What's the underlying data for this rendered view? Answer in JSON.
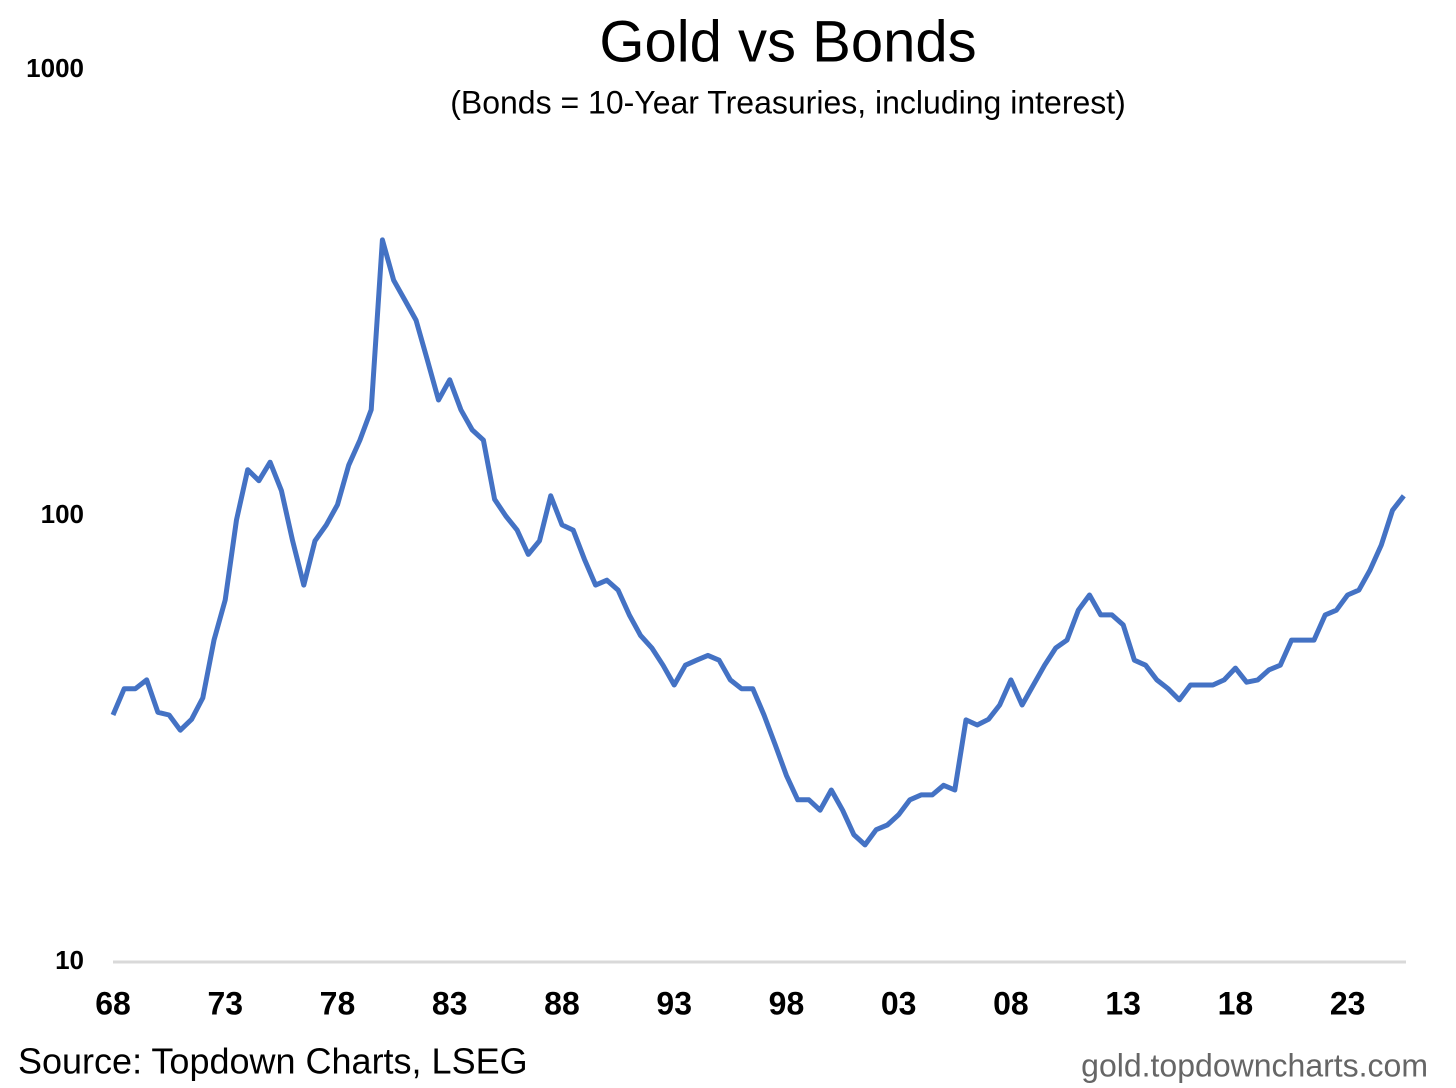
{
  "chart_data": {
    "type": "line",
    "title": "Gold vs Bonds",
    "subtitle": "(Bonds = 10-Year Treasuries, including interest)",
    "source": "Source: Topdown Charts, LSEG",
    "watermark": "gold.topdowncharts.com",
    "log_y": true,
    "x": [
      1968,
      1968.5,
      1969,
      1969.5,
      1970,
      1970.5,
      1971,
      1971.5,
      1972,
      1972.5,
      1973,
      1973.5,
      1974,
      1974.5,
      1975,
      1975.5,
      1976,
      1976.5,
      1977,
      1977.5,
      1978,
      1978.5,
      1979,
      1979.5,
      1980,
      1980.5,
      1981,
      1981.5,
      1982,
      1982.5,
      1983,
      1983.5,
      1984,
      1984.5,
      1985,
      1985.5,
      1986,
      1986.5,
      1987,
      1987.5,
      1988,
      1988.5,
      1989,
      1989.5,
      1990,
      1990.5,
      1991,
      1991.5,
      1992,
      1992.5,
      1993,
      1993.5,
      1994,
      1994.5,
      1995,
      1995.5,
      1996,
      1996.5,
      1997,
      1997.5,
      1998,
      1998.5,
      1999,
      1999.5,
      2000,
      2000.5,
      2001,
      2001.5,
      2002,
      2002.5,
      2003,
      2003.5,
      2004,
      2004.5,
      2005,
      2005.5,
      2006,
      2006.5,
      2007,
      2007.5,
      2008,
      2008.5,
      2009,
      2009.5,
      2010,
      2010.5,
      2011,
      2011.5,
      2012,
      2012.5,
      2013,
      2013.5,
      2014,
      2014.5,
      2015,
      2015.5,
      2016,
      2016.5,
      2017,
      2017.5,
      2018,
      2018.5,
      2019,
      2019.5,
      2020,
      2020.5,
      2021,
      2021.5,
      2022,
      2022.5,
      2023,
      2023.5,
      2024,
      2024.5,
      2025,
      2025.5
    ],
    "series": [
      {
        "name": "Gold vs Bonds",
        "color": "#4472c4",
        "values": [
          35.8,
          41,
          41,
          42.9,
          36.3,
          35.8,
          33.1,
          35,
          39.1,
          52.7,
          64.8,
          98,
          127,
          120,
          132,
          114,
          88,
          70,
          88,
          95.5,
          106,
          130,
          148,
          173,
          416,
          338,
          305,
          275,
          224,
          182,
          202,
          173,
          156,
          148,
          109,
          100,
          93,
          82,
          88,
          111,
          95.5,
          93,
          80,
          70,
          71.8,
          68.2,
          60,
          54,
          50.6,
          46.3,
          41.8,
          46.3,
          47.5,
          48.7,
          47.5,
          42.9,
          41,
          41,
          35.8,
          30.7,
          26.2,
          23.1,
          23.1,
          21.9,
          24.3,
          21.9,
          19.3,
          18.3,
          19.8,
          20.3,
          21.4,
          23.1,
          23.7,
          23.7,
          24.9,
          24.3,
          34.9,
          34,
          35,
          37.7,
          42.9,
          37.7,
          41.8,
          46.3,
          50.6,
          52.7,
          61.5,
          66.5,
          60,
          60,
          57,
          47.5,
          46.3,
          42.9,
          41,
          38.7,
          41.8,
          41.8,
          41.8,
          42.9,
          45.6,
          42.4,
          42.9,
          45.2,
          46.3,
          52.7,
          52.7,
          52.7,
          60,
          61.5,
          66.5,
          68.2,
          75.7,
          86.1,
          103,
          111
        ]
      }
    ],
    "xlim": [
      1968,
      2025.6
    ],
    "xticks": [
      {
        "value": 1968,
        "label": "68"
      },
      {
        "value": 1973,
        "label": "73"
      },
      {
        "value": 1978,
        "label": "78"
      },
      {
        "value": 1983,
        "label": "83"
      },
      {
        "value": 1988,
        "label": "88"
      },
      {
        "value": 1993,
        "label": "93"
      },
      {
        "value": 1998,
        "label": "98"
      },
      {
        "value": 2003,
        "label": "03"
      },
      {
        "value": 2008,
        "label": "08"
      },
      {
        "value": 2013,
        "label": "13"
      },
      {
        "value": 2018,
        "label": "18"
      },
      {
        "value": 2023,
        "label": "23"
      }
    ],
    "ylim": [
      10,
      1000
    ],
    "yticks": [
      10,
      100,
      1000
    ]
  }
}
